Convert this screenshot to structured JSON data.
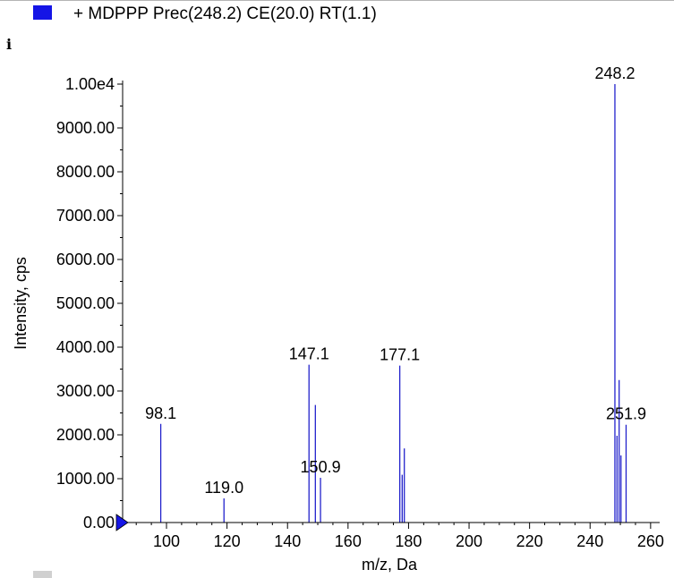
{
  "legend": {
    "text": "+ MDPPP Prec(248.2) CE(20.0) RT(1.1)",
    "swatch_color": "#1515e6"
  },
  "corner_mark": "i",
  "chart_data": {
    "type": "bar",
    "title": "",
    "xlabel": "m/z, Da",
    "ylabel": "Intensity, cps",
    "xlim": [
      85.5,
      263
    ],
    "ylim": [
      0,
      10000
    ],
    "x_ticks": [
      "100",
      "120",
      "140",
      "160",
      "180",
      "200",
      "220",
      "240",
      "260"
    ],
    "y_ticks": [
      "0.00",
      "1000.00",
      "2000.00",
      "3000.00",
      "4000.00",
      "5000.00",
      "6000.00",
      "7000.00",
      "8000.00",
      "9000.00",
      "1.00e4"
    ],
    "series": [
      {
        "color": "#2222cc",
        "x": [
          98.1,
          119.0,
          147.1,
          149.2,
          150.9,
          177.1,
          177.9,
          178.6,
          248.2,
          248.9,
          249.6,
          250.2,
          251.9
        ],
        "values": [
          2250,
          550,
          3600,
          2680,
          1020,
          3580,
          1090,
          1690,
          10000,
          1980,
          3250,
          1530,
          2230
        ]
      }
    ],
    "peak_labels": [
      "98.1",
      "119.0",
      "147.1",
      "150.9",
      "177.1",
      "248.2",
      "251.9"
    ],
    "peak_label_x": [
      98.1,
      119.0,
      147.1,
      150.9,
      177.1,
      248.2,
      251.9
    ],
    "peak_label_y": [
      2250,
      550,
      3600,
      1020,
      3580,
      10000,
      2230
    ],
    "marker_color": "#1515e6"
  }
}
